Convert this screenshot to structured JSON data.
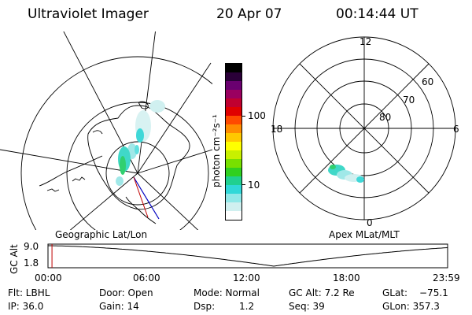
{
  "header": {
    "instrument": "Ultraviolet Imager",
    "date": "20 Apr 07",
    "time": "00:14:44 UT"
  },
  "colorbar": {
    "label": "photon cm⁻²s⁻¹",
    "ticks": [
      "100",
      "10"
    ],
    "colors": [
      "#000000",
      "#2a0038",
      "#6a0070",
      "#9a0060",
      "#c00030",
      "#e00000",
      "#ff4a00",
      "#ff8c00",
      "#ffc800",
      "#ffff00",
      "#c8f000",
      "#78e000",
      "#30d020",
      "#20d090",
      "#30d8d8",
      "#90e8e8",
      "#d0f0f0",
      "#ffffff"
    ]
  },
  "left_map": {
    "label": "Geographic Lat/Lon"
  },
  "right_map": {
    "label": "Apex MLat/MLT",
    "mlt_labels": {
      "top": "12",
      "left": "18",
      "right": "6",
      "bottom": "0"
    },
    "lat_labels": [
      "60",
      "70",
      "80"
    ]
  },
  "timeline": {
    "y_title": "GC Alt",
    "y_ticks": [
      "9.0",
      "1.8"
    ],
    "x_ticks": [
      "00:00",
      "06:00",
      "12:00",
      "18:00",
      "23:59"
    ],
    "current_time_fraction": 0.01
  },
  "info": {
    "filter_label": "Flt: LBHL",
    "ip_label": "IP: 36.0",
    "door_label": "Door: Open",
    "gain_label": "Gain: 14",
    "mode_label": "Mode: Normal",
    "dsp_label": "Dsp:",
    "dsp_value": "1.2",
    "gcalt_label": "GC Alt: 7.2 Re",
    "seq_label": "Seq: 39",
    "glat_label": "GLat:",
    "glat_value": "−75.1",
    "glon_label": "GLon: 357.3"
  }
}
